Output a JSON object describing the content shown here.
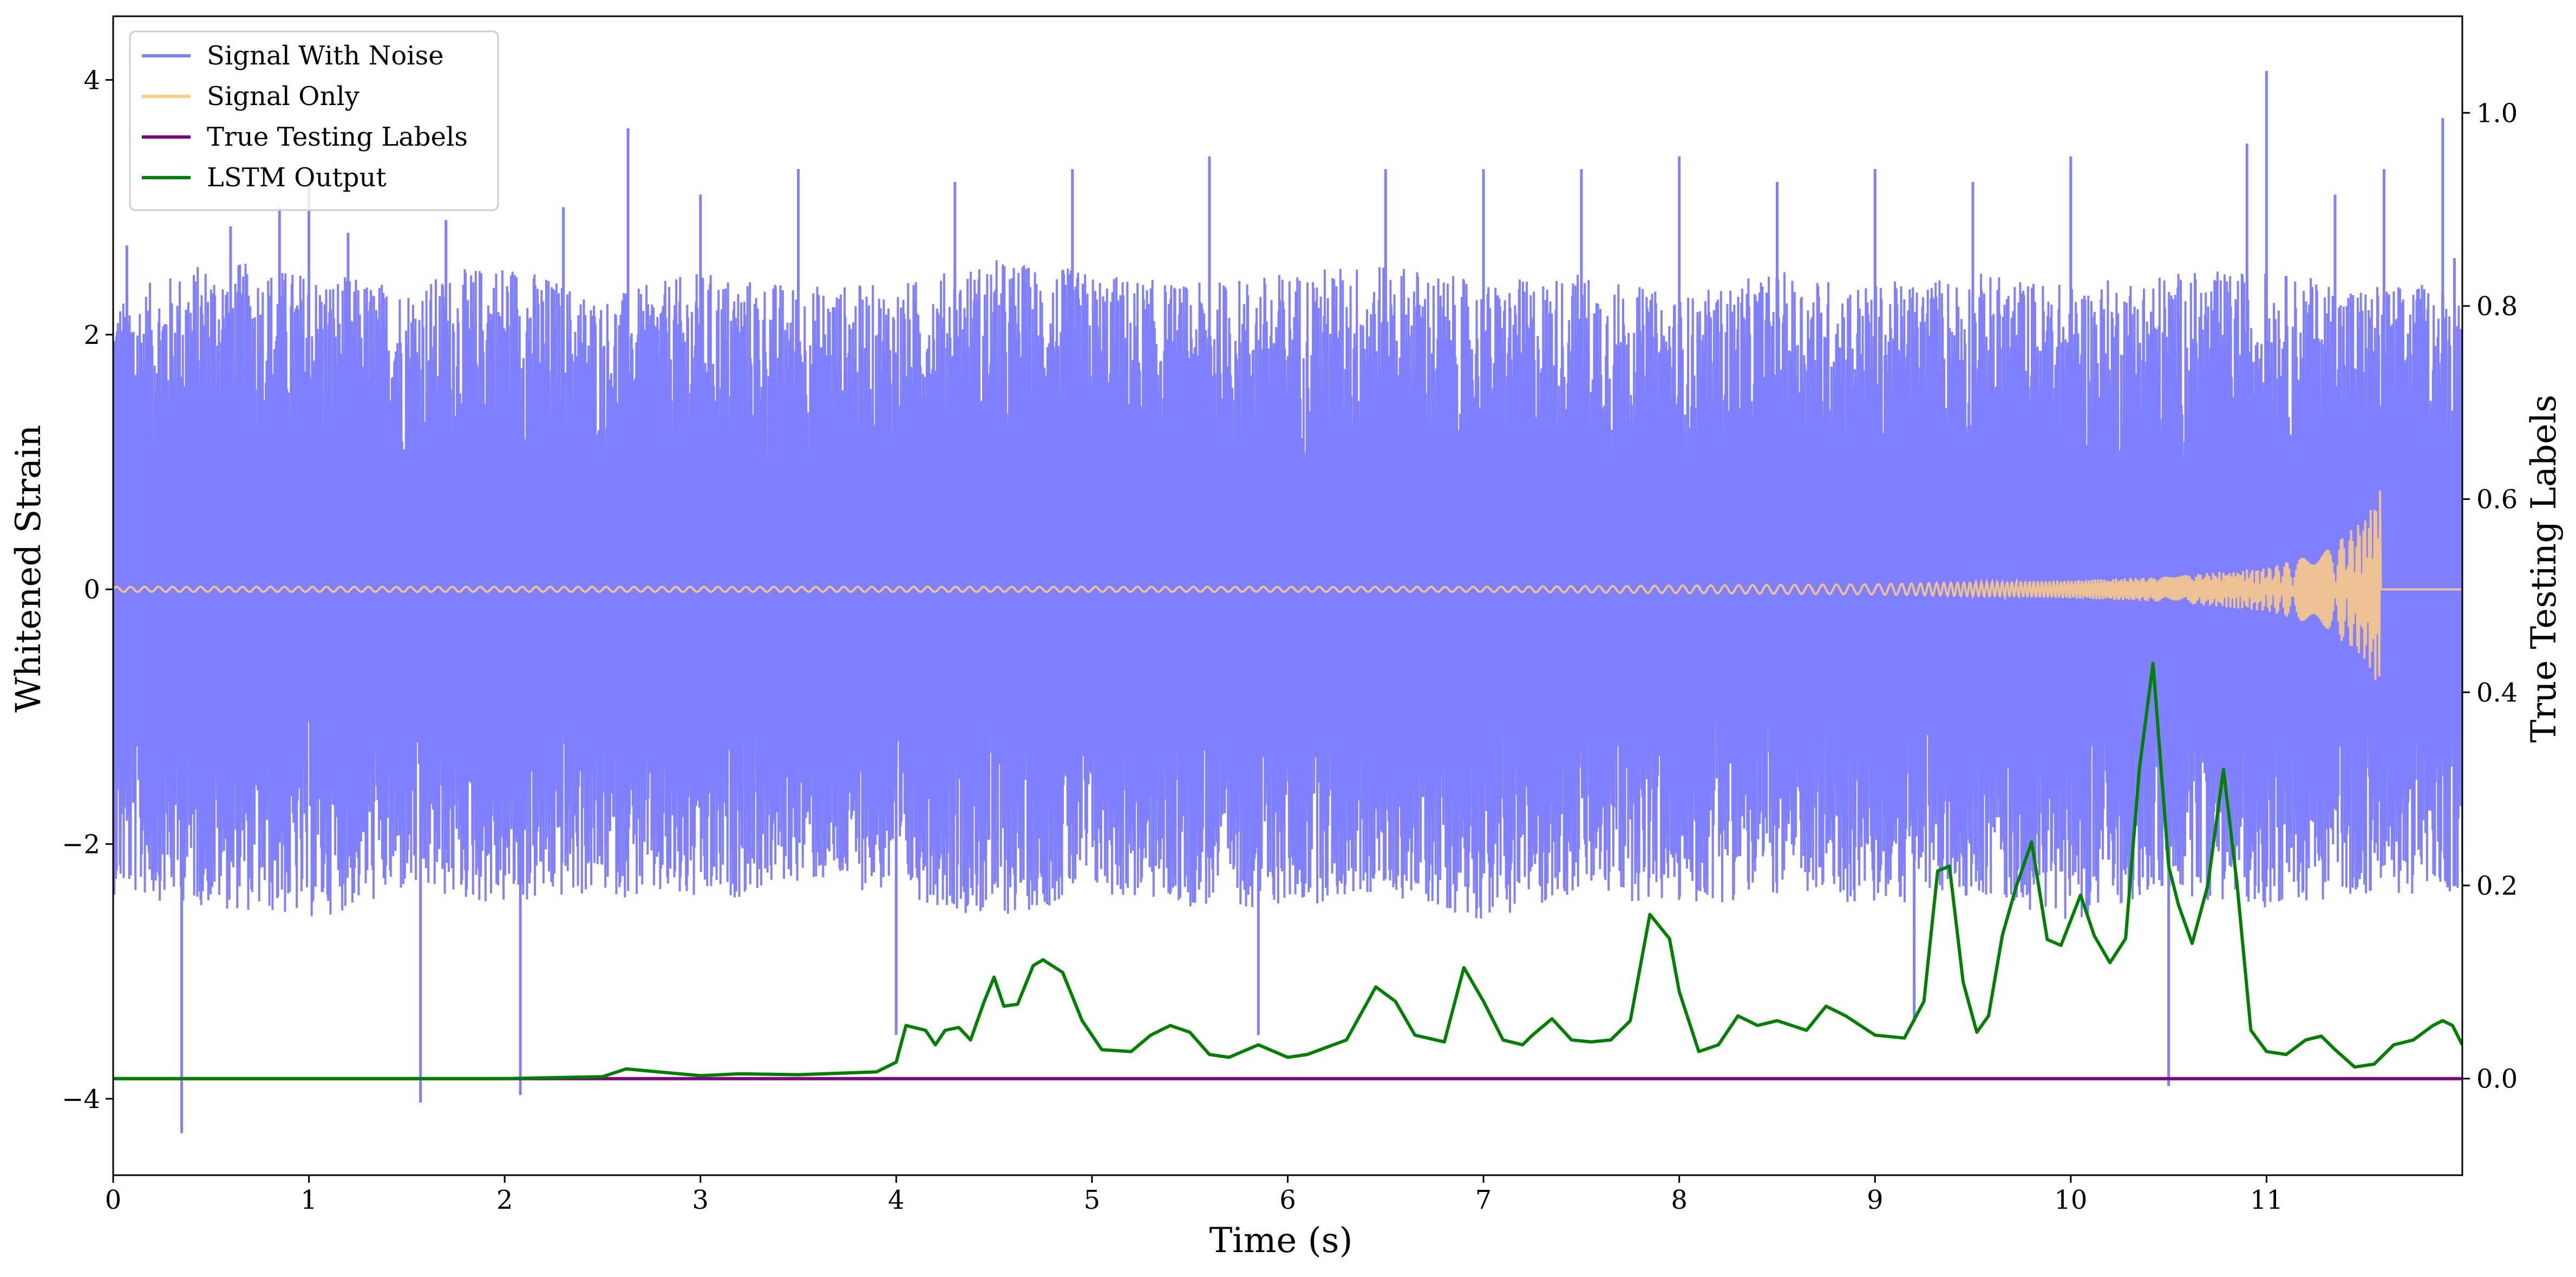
{
  "chart_data": {
    "type": "line",
    "title": "",
    "xlabel": "Time (s)",
    "ylabel": "Whitened Strain",
    "ylabel_right": "True Testing Labels",
    "xlim": [
      0,
      12.0
    ],
    "ylim": [
      -4.6,
      4.5
    ],
    "ylim_right": [
      -0.1,
      1.1
    ],
    "x_ticks": [
      0,
      1,
      2,
      3,
      4,
      5,
      6,
      7,
      8,
      9,
      10,
      11
    ],
    "x_tick_labels": [
      "0",
      "1",
      "2",
      "3",
      "4",
      "5",
      "6",
      "7",
      "8",
      "9",
      "10",
      "11"
    ],
    "y_ticks": [
      -4,
      -2,
      0,
      2,
      4
    ],
    "y_tick_labels": [
      "−4",
      "−2",
      "0",
      "2",
      "4"
    ],
    "y_ticks_right": [
      0.0,
      0.2,
      0.4,
      0.6,
      0.8,
      1.0
    ],
    "y_tick_labels_right": [
      "0.0",
      "0.2",
      "0.4",
      "0.6",
      "0.8",
      "1.0"
    ],
    "grid": false,
    "legend_position": "top-left",
    "series": [
      {
        "name": "Signal With Noise",
        "axis": "left",
        "color": "#8080ff",
        "description_values": "dense noise envelope",
        "envelope_upper": [
          [
            0,
            2.3
          ],
          [
            0.5,
            2.6
          ],
          [
            1.0,
            2.5
          ],
          [
            1.5,
            2.4
          ],
          [
            2.0,
            2.6
          ],
          [
            2.5,
            2.3
          ],
          [
            3.0,
            2.5
          ],
          [
            3.5,
            2.4
          ],
          [
            4.0,
            2.4
          ],
          [
            4.5,
            2.6
          ],
          [
            5.0,
            2.5
          ],
          [
            5.5,
            2.4
          ],
          [
            6.0,
            2.5
          ],
          [
            6.5,
            2.6
          ],
          [
            7.0,
            2.4
          ],
          [
            7.5,
            2.5
          ],
          [
            8.0,
            2.3
          ],
          [
            8.5,
            2.5
          ],
          [
            9.0,
            2.4
          ],
          [
            9.5,
            2.5
          ],
          [
            10.0,
            2.4
          ],
          [
            10.5,
            2.5
          ],
          [
            11.0,
            2.5
          ],
          [
            11.5,
            2.4
          ],
          [
            12.0,
            2.4
          ]
        ],
        "envelope_lower": [
          [
            0,
            -2.4
          ],
          [
            0.5,
            -2.5
          ],
          [
            1.0,
            -2.6
          ],
          [
            1.5,
            -2.4
          ],
          [
            2.0,
            -2.5
          ],
          [
            2.5,
            -2.4
          ],
          [
            3.0,
            -2.5
          ],
          [
            3.5,
            -2.3
          ],
          [
            4.0,
            -2.4
          ],
          [
            4.5,
            -2.6
          ],
          [
            5.0,
            -2.4
          ],
          [
            5.5,
            -2.5
          ],
          [
            6.0,
            -2.5
          ],
          [
            6.5,
            -2.4
          ],
          [
            7.0,
            -2.6
          ],
          [
            7.5,
            -2.4
          ],
          [
            8.0,
            -2.5
          ],
          [
            8.5,
            -2.4
          ],
          [
            9.0,
            -2.5
          ],
          [
            9.5,
            -2.4
          ],
          [
            10.0,
            -2.6
          ],
          [
            10.5,
            -2.4
          ],
          [
            11.0,
            -2.5
          ],
          [
            11.5,
            -2.4
          ],
          [
            12.0,
            -2.4
          ]
        ],
        "spikes": [
          [
            0.07,
            2.7
          ],
          [
            0.35,
            -4.27
          ],
          [
            0.6,
            2.85
          ],
          [
            0.85,
            3.0
          ],
          [
            1.0,
            3.2
          ],
          [
            1.2,
            2.8
          ],
          [
            1.57,
            -4.03
          ],
          [
            1.7,
            2.9
          ],
          [
            2.08,
            -3.97
          ],
          [
            2.3,
            3.0
          ],
          [
            2.63,
            3.62
          ],
          [
            3.0,
            3.1
          ],
          [
            3.5,
            3.3
          ],
          [
            4.0,
            -3.5
          ],
          [
            4.3,
            3.2
          ],
          [
            4.9,
            3.3
          ],
          [
            5.6,
            3.4
          ],
          [
            5.85,
            -3.5
          ],
          [
            6.5,
            3.3
          ],
          [
            7.0,
            3.3
          ],
          [
            7.5,
            3.3
          ],
          [
            8.0,
            3.4
          ],
          [
            8.5,
            3.2
          ],
          [
            9.0,
            3.3
          ],
          [
            9.2,
            -3.4
          ],
          [
            9.5,
            3.2
          ],
          [
            10.0,
            3.4
          ],
          [
            10.5,
            -3.9
          ],
          [
            10.9,
            3.5
          ],
          [
            11.0,
            4.07
          ],
          [
            11.35,
            3.1
          ],
          [
            11.6,
            3.3
          ],
          [
            11.9,
            3.7
          ],
          [
            11.96,
            2.6
          ]
        ]
      },
      {
        "name": "Signal Only",
        "axis": "left",
        "color": "#ffcc80",
        "description_values": "chirp",
        "points": [
          [
            0,
            0.02
          ],
          [
            1,
            0.02
          ],
          [
            2,
            0.02
          ],
          [
            3,
            0.02
          ],
          [
            4,
            0.02
          ],
          [
            5,
            0.02
          ],
          [
            6,
            0.02
          ],
          [
            7,
            0.02
          ],
          [
            8,
            0.03
          ],
          [
            9,
            0.04
          ],
          [
            10,
            0.07
          ],
          [
            10.5,
            0.1
          ],
          [
            11.0,
            0.17
          ],
          [
            11.3,
            0.3
          ],
          [
            11.5,
            0.55
          ],
          [
            11.58,
            0.78
          ],
          [
            11.6,
            0.0
          ],
          [
            12.0,
            0.0
          ]
        ]
      },
      {
        "name": "True Testing Labels",
        "axis": "right",
        "color": "#800080",
        "points": [
          [
            0,
            0.0
          ],
          [
            12.0,
            0.0
          ]
        ]
      },
      {
        "name": "LSTM Output",
        "axis": "right",
        "color": "#008000",
        "points": [
          [
            0.0,
            0.0
          ],
          [
            1.0,
            0.0
          ],
          [
            2.0,
            0.0
          ],
          [
            2.5,
            0.002
          ],
          [
            2.62,
            0.01
          ],
          [
            3.0,
            0.003
          ],
          [
            3.2,
            0.005
          ],
          [
            3.5,
            0.004
          ],
          [
            3.9,
            0.007
          ],
          [
            4.0,
            0.017
          ],
          [
            4.05,
            0.055
          ],
          [
            4.15,
            0.05
          ],
          [
            4.2,
            0.035
          ],
          [
            4.25,
            0.05
          ],
          [
            4.32,
            0.053
          ],
          [
            4.38,
            0.04
          ],
          [
            4.45,
            0.08
          ],
          [
            4.5,
            0.105
          ],
          [
            4.55,
            0.075
          ],
          [
            4.62,
            0.077
          ],
          [
            4.7,
            0.117
          ],
          [
            4.75,
            0.123
          ],
          [
            4.85,
            0.11
          ],
          [
            4.95,
            0.06
          ],
          [
            5.05,
            0.03
          ],
          [
            5.2,
            0.028
          ],
          [
            5.3,
            0.045
          ],
          [
            5.4,
            0.055
          ],
          [
            5.5,
            0.048
          ],
          [
            5.6,
            0.025
          ],
          [
            5.7,
            0.022
          ],
          [
            5.85,
            0.035
          ],
          [
            6.0,
            0.022
          ],
          [
            6.1,
            0.025
          ],
          [
            6.3,
            0.04
          ],
          [
            6.45,
            0.095
          ],
          [
            6.55,
            0.08
          ],
          [
            6.65,
            0.045
          ],
          [
            6.8,
            0.038
          ],
          [
            6.9,
            0.115
          ],
          [
            7.0,
            0.08
          ],
          [
            7.1,
            0.04
          ],
          [
            7.2,
            0.035
          ],
          [
            7.25,
            0.045
          ],
          [
            7.35,
            0.062
          ],
          [
            7.45,
            0.04
          ],
          [
            7.55,
            0.038
          ],
          [
            7.65,
            0.04
          ],
          [
            7.75,
            0.06
          ],
          [
            7.85,
            0.17
          ],
          [
            7.95,
            0.145
          ],
          [
            8.0,
            0.09
          ],
          [
            8.1,
            0.028
          ],
          [
            8.2,
            0.035
          ],
          [
            8.3,
            0.065
          ],
          [
            8.4,
            0.055
          ],
          [
            8.5,
            0.06
          ],
          [
            8.65,
            0.05
          ],
          [
            8.75,
            0.075
          ],
          [
            8.85,
            0.065
          ],
          [
            9.0,
            0.045
          ],
          [
            9.15,
            0.042
          ],
          [
            9.25,
            0.08
          ],
          [
            9.32,
            0.215
          ],
          [
            9.38,
            0.22
          ],
          [
            9.45,
            0.1
          ],
          [
            9.52,
            0.048
          ],
          [
            9.58,
            0.065
          ],
          [
            9.65,
            0.148
          ],
          [
            9.72,
            0.198
          ],
          [
            9.8,
            0.245
          ],
          [
            9.88,
            0.144
          ],
          [
            9.95,
            0.138
          ],
          [
            10.05,
            0.19
          ],
          [
            10.12,
            0.148
          ],
          [
            10.2,
            0.12
          ],
          [
            10.28,
            0.145
          ],
          [
            10.35,
            0.32
          ],
          [
            10.42,
            0.43
          ],
          [
            10.5,
            0.22
          ],
          [
            10.55,
            0.18
          ],
          [
            10.62,
            0.14
          ],
          [
            10.7,
            0.2
          ],
          [
            10.78,
            0.32
          ],
          [
            10.85,
            0.2
          ],
          [
            10.92,
            0.05
          ],
          [
            11.0,
            0.028
          ],
          [
            11.1,
            0.025
          ],
          [
            11.2,
            0.04
          ],
          [
            11.28,
            0.044
          ],
          [
            11.35,
            0.03
          ],
          [
            11.45,
            0.012
          ],
          [
            11.55,
            0.015
          ],
          [
            11.65,
            0.035
          ],
          [
            11.75,
            0.04
          ],
          [
            11.85,
            0.055
          ],
          [
            11.9,
            0.06
          ],
          [
            11.95,
            0.055
          ],
          [
            12.0,
            0.035
          ]
        ]
      }
    ]
  }
}
